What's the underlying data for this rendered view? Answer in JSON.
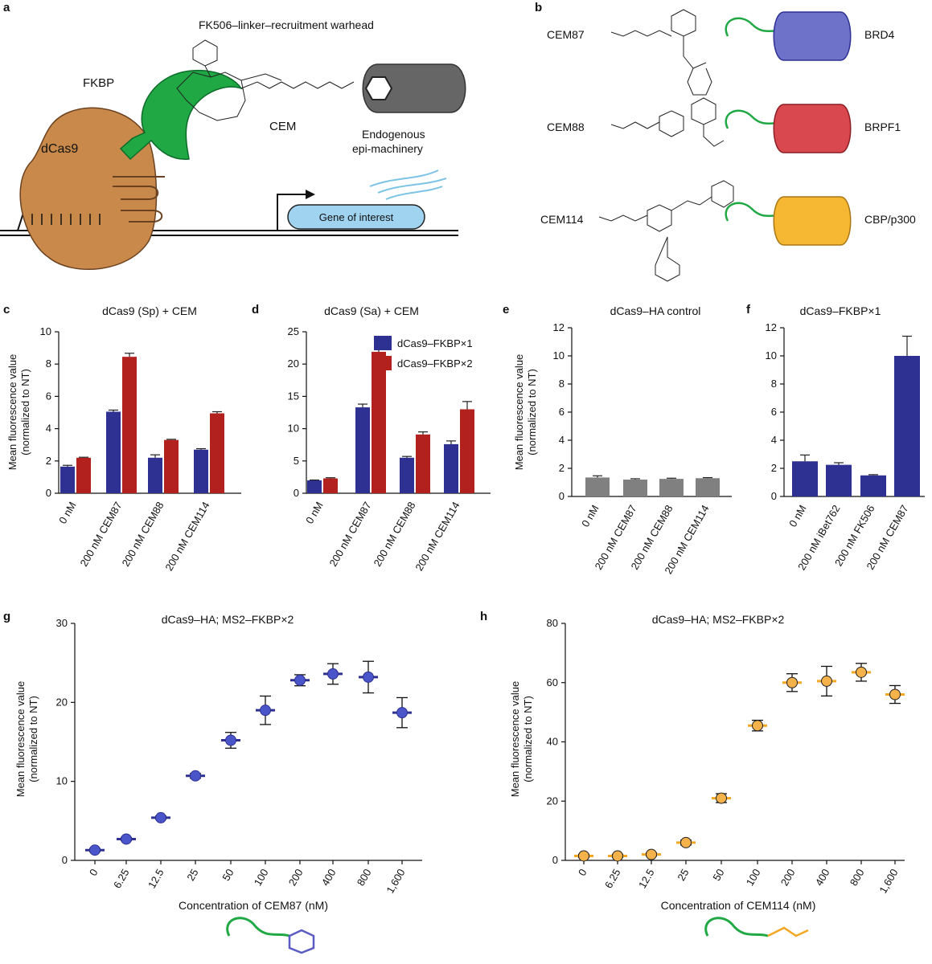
{
  "colors": {
    "blue": "#2e3192",
    "red": "#b3211f",
    "gray": "#808080",
    "orange": "#f5a623",
    "green": "#20a844",
    "dcas9": "#c8894a",
    "gene": "#9fd3f0",
    "brd4": "#6f72c9",
    "brpf1": "#d9474f",
    "cbp": "#f6b733"
  },
  "panel_labels": {
    "a": "a",
    "b": "b",
    "c": "c",
    "d": "d",
    "e": "e",
    "f": "f",
    "g": "g",
    "h": "h"
  },
  "schematic_a": {
    "title": "FK506–linker–recruitment warhead",
    "fkbp": "FKBP",
    "dcas9": "dCas9",
    "cem": "CEM",
    "endogenous_line1": "Endogenous",
    "endogenous_line2": "epi-machinery",
    "gene": "Gene of interest"
  },
  "schematic_b": {
    "rows": [
      {
        "compound": "CEM87",
        "target": "BRD4"
      },
      {
        "compound": "CEM88",
        "target": "BRPF1"
      },
      {
        "compound": "CEM114",
        "target": "CBP/p300"
      }
    ]
  },
  "chart_data": [
    {
      "id": "c",
      "type": "bar",
      "title": "dCas9 (Sp) + CEM",
      "ylabel": "Mean fluorescence value (normalized to NT)",
      "ylabel_line1": "Mean fluorescence value",
      "ylabel_line2": "(normalized to NT)",
      "ylim": [
        0,
        10
      ],
      "yticks": [
        0,
        2,
        4,
        6,
        8,
        10
      ],
      "categories": [
        "0 nM",
        "200 nM CEM87",
        "200 nM CEM88",
        "200 nM CEM114"
      ],
      "series": [
        {
          "name": "dCas9–FKBP×1",
          "color": "#2e3192",
          "values": [
            1.65,
            5.05,
            2.2,
            2.7
          ],
          "errors": [
            0.08,
            0.1,
            0.18,
            0.06
          ]
        },
        {
          "name": "dCas9–FKBP×2",
          "color": "#b3211f",
          "values": [
            2.2,
            8.45,
            3.3,
            4.95
          ],
          "errors": [
            0.03,
            0.22,
            0.04,
            0.1
          ]
        }
      ]
    },
    {
      "id": "d",
      "type": "bar",
      "title": "dCas9 (Sa) + CEM",
      "ylim": [
        0,
        25
      ],
      "yticks": [
        0,
        5,
        10,
        15,
        20,
        25
      ],
      "categories": [
        "0 nM",
        "200 nM CEM87",
        "200 nM CEM88",
        "200 nM CEM114"
      ],
      "legend": [
        "dCas9–FKBP×1",
        "dCas9–FKBP×2"
      ],
      "series": [
        {
          "name": "dCas9–FKBP×1",
          "color": "#2e3192",
          "values": [
            2.0,
            13.3,
            5.5,
            7.6
          ],
          "errors": [
            0.05,
            0.5,
            0.2,
            0.5
          ]
        },
        {
          "name": "dCas9–FKBP×2",
          "color": "#b3211f",
          "values": [
            2.3,
            21.9,
            9.1,
            13.0
          ],
          "errors": [
            0.1,
            0.4,
            0.4,
            1.2
          ]
        }
      ]
    },
    {
      "id": "e",
      "type": "bar",
      "title": "dCas9–HA control",
      "ylabel_line1": "Mean fluorescence value",
      "ylabel_line2": "(normalized to NT)",
      "ylim": [
        0,
        12
      ],
      "yticks": [
        0,
        2,
        4,
        6,
        8,
        10,
        12
      ],
      "categories": [
        "0 nM",
        "200 nM CEM87",
        "200 nM CEM88",
        "200 nM CEM114"
      ],
      "series": [
        {
          "name": "dCas9–HA",
          "color": "#808080",
          "values": [
            1.35,
            1.2,
            1.25,
            1.3
          ],
          "errors": [
            0.12,
            0.06,
            0.05,
            0.04
          ]
        }
      ]
    },
    {
      "id": "f",
      "type": "bar",
      "title": "dCas9–FKBP×1",
      "ylim": [
        0,
        12
      ],
      "yticks": [
        0,
        2,
        4,
        6,
        8,
        10,
        12
      ],
      "categories": [
        "0 nM",
        "200 nM iBet762",
        "200 nM FK506",
        "200 nM CEM87"
      ],
      "series": [
        {
          "name": "dCas9–FKBP×1",
          "color": "#2e3192",
          "values": [
            2.5,
            2.25,
            1.5,
            10.0
          ],
          "errors": [
            0.45,
            0.15,
            0.05,
            1.4
          ]
        }
      ]
    },
    {
      "id": "g",
      "type": "scatter",
      "title": "dCas9–HA; MS2–FKBP×2",
      "xlabel": "Concentration of CEM87 (nM)",
      "ylabel_line1": "Mean fluorescence value",
      "ylabel_line2": "(normalized to NT)",
      "ylim": [
        0,
        30
      ],
      "yticks": [
        0,
        10,
        20,
        30
      ],
      "x": [
        "0",
        "6.25",
        "12.5",
        "25",
        "50",
        "100",
        "200",
        "400",
        "800",
        "1,600"
      ],
      "values": [
        1.3,
        2.7,
        5.4,
        10.7,
        15.2,
        19.0,
        22.8,
        23.6,
        23.2,
        18.7
      ],
      "errors": [
        0.2,
        0.2,
        0.2,
        0.3,
        1.0,
        1.8,
        0.7,
        1.3,
        2.0,
        1.9
      ],
      "color": "#2e3192",
      "fill": "#4a55c9"
    },
    {
      "id": "h",
      "type": "scatter",
      "title": "dCas9–HA; MS2–FKBP×2",
      "xlabel": "Concentration of CEM114 (nM)",
      "ylabel_line1": "Mean fluorescence value",
      "ylabel_line2": "(normalized to NT)",
      "ylim": [
        0,
        80
      ],
      "yticks": [
        0,
        20,
        40,
        60,
        80
      ],
      "x": [
        "0",
        "6.25",
        "12.5",
        "25",
        "50",
        "100",
        "200",
        "400",
        "800",
        "1,600"
      ],
      "values": [
        1.5,
        1.5,
        2.0,
        6.0,
        21.0,
        45.5,
        60.0,
        60.5,
        63.5,
        56.0
      ],
      "errors": [
        0.5,
        0.5,
        0.5,
        0.8,
        1.5,
        1.8,
        3.0,
        5.0,
        3.0,
        3.0
      ],
      "color": "#f5a623",
      "fill": "#f6b24a"
    }
  ]
}
